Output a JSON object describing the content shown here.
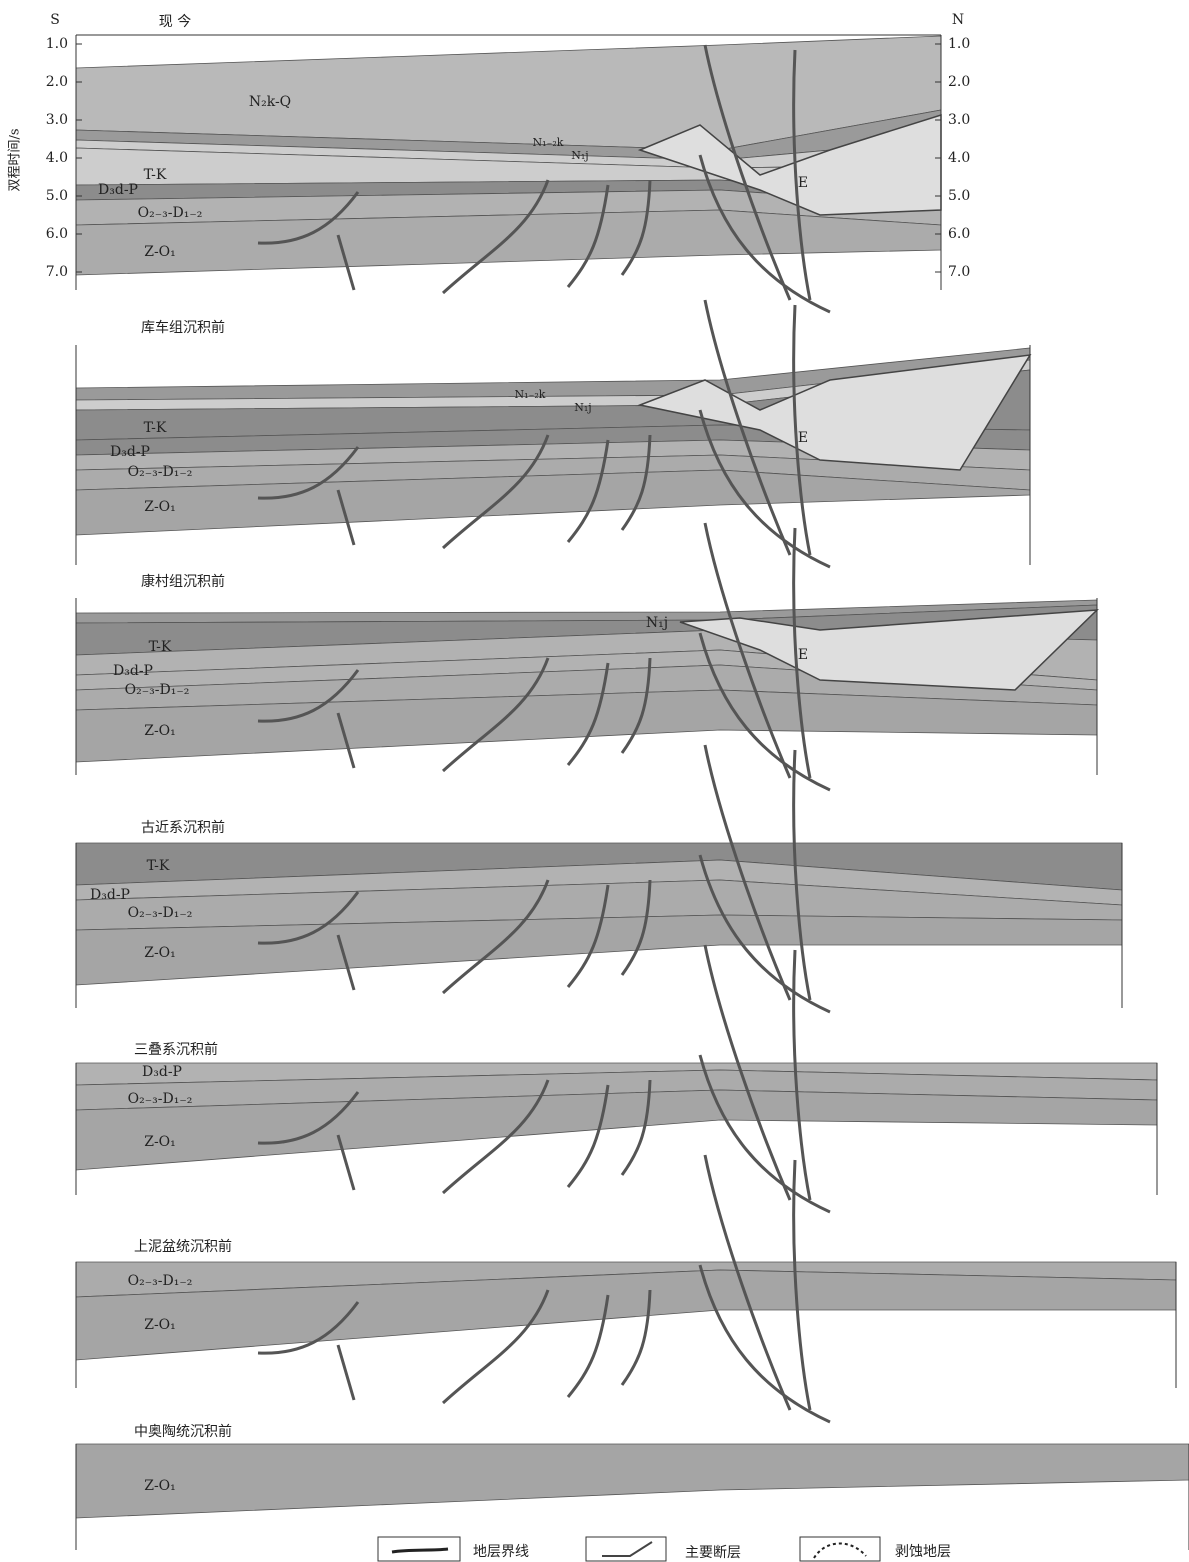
{
  "header": {
    "south": "S",
    "title": "现 今",
    "north": "N"
  },
  "axis": {
    "label": "双程时间/s",
    "ticks": [
      "1.0",
      "2.0",
      "3.0",
      "4.0",
      "5.0",
      "6.0",
      "7.0"
    ]
  },
  "panels": [
    {
      "labels": [
        "N₂k-Q",
        "N₁₋₂k",
        "N₁j",
        "T-K",
        "E",
        "D₃d-P",
        "O₂₋₃-D₁₋₂",
        "Z-O₁"
      ]
    },
    {
      "title": "库车组沉积前",
      "labels": [
        "N₁₋₂k",
        "N₁j",
        "T-K",
        "E",
        "D₃d-P",
        "O₂₋₃-D₁₋₂",
        "Z-O₁"
      ]
    },
    {
      "title": "康村组沉积前",
      "labels": [
        "N₁j",
        "T-K",
        "E",
        "D₃d-P",
        "O₂₋₃-D₁₋₂",
        "Z-O₁"
      ]
    },
    {
      "title": "古近系沉积前",
      "labels": [
        "T-K",
        "D₃d-P",
        "O₂₋₃-D₁₋₂",
        "Z-O₁"
      ]
    },
    {
      "title": "三叠系沉积前",
      "labels": [
        "D₃d-P",
        "O₂₋₃-D₁₋₂",
        "Z-O₁"
      ]
    },
    {
      "title": "上泥盆统沉积前",
      "labels": [
        "O₂₋₃-D₁₋₂",
        "Z-O₁"
      ]
    },
    {
      "title": "中奥陶统沉积前",
      "labels": [
        "Z-O₁"
      ]
    }
  ],
  "legend": [
    "地层界线",
    "主要断层",
    "剥蚀地层"
  ]
}
